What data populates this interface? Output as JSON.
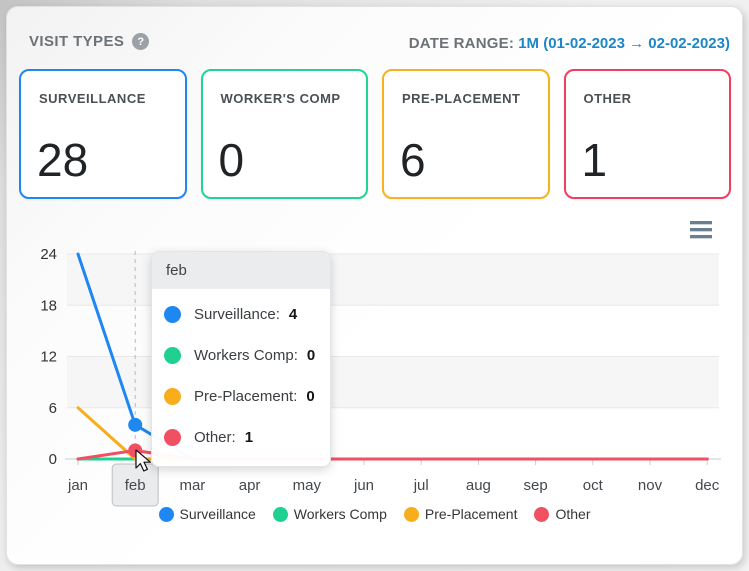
{
  "header": {
    "title": "VISIT TYPES",
    "help_glyph": "?",
    "date_range_label": "DATE RANGE:",
    "date_range_value": "1M (01-02-2023 → 02-02-2023)"
  },
  "cards": [
    {
      "label": "SURVEILLANCE",
      "value": "28",
      "color": "#1e87f2"
    },
    {
      "label": "WORKER'S COMP",
      "value": "0",
      "color": "#20d491"
    },
    {
      "label": "PRE-PLACEMENT",
      "value": "6",
      "color": "#f6b321"
    },
    {
      "label": "OTHER",
      "value": "1",
      "color": "#f23e63"
    }
  ],
  "chart_data": {
    "type": "line",
    "x": [
      "jan",
      "feb",
      "mar",
      "apr",
      "may",
      "jun",
      "jul",
      "aug",
      "sep",
      "oct",
      "nov",
      "dec"
    ],
    "series": [
      {
        "name": "Surveillance",
        "color": "#1e87f2",
        "values": [
          24,
          4,
          0,
          0,
          0,
          0,
          0,
          0,
          0,
          0,
          0,
          0
        ]
      },
      {
        "name": "Workers Comp",
        "color": "#1fd191",
        "values": [
          0,
          0,
          0,
          0,
          0,
          0,
          0,
          0,
          0,
          0,
          0,
          0
        ]
      },
      {
        "name": "Pre-Placement",
        "color": "#f8ae1a",
        "values": [
          6,
          0,
          0,
          0,
          0,
          0,
          0,
          0,
          0,
          0,
          0,
          0
        ]
      },
      {
        "name": "Other",
        "color": "#f05162",
        "values": [
          0,
          1,
          0,
          0,
          0,
          0,
          0,
          0,
          0,
          0,
          0,
          0
        ]
      }
    ],
    "ylim": [
      0,
      24
    ],
    "yticks": [
      0,
      6,
      12,
      18,
      24
    ],
    "highlighted_month": "feb",
    "hover_markers": [
      {
        "series": "Surveillance",
        "month": "feb",
        "value": 4
      },
      {
        "series": "Other",
        "month": "feb",
        "value": 1
      }
    ],
    "grid": true,
    "alternate_bands": true,
    "legend_position": "bottom"
  },
  "tooltip": {
    "title": "feb",
    "rows": [
      {
        "label": "Surveillance:",
        "value": "4"
      },
      {
        "label": "Workers Comp:",
        "value": "0"
      },
      {
        "label": "Pre-Placement:",
        "value": "0"
      },
      {
        "label": "Other:",
        "value": "1"
      }
    ]
  }
}
